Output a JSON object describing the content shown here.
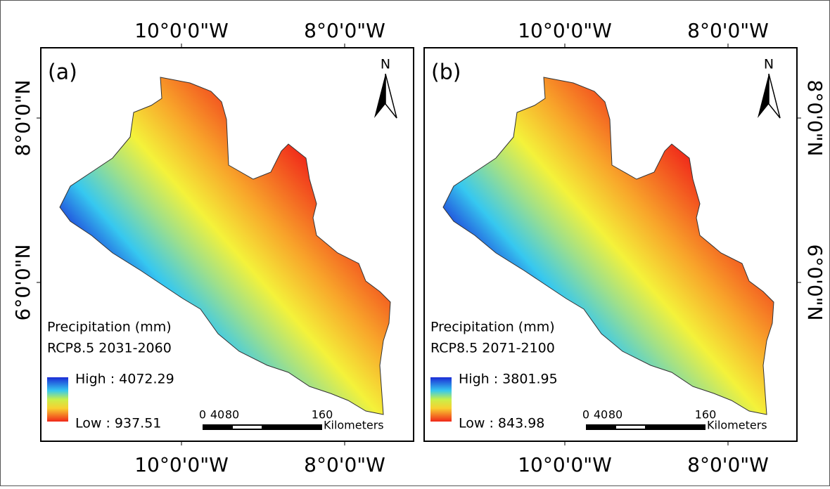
{
  "panels": [
    {
      "label": "(a)",
      "north": "N",
      "top_ticks": [
        "10°0'0\"W",
        "8°0'0\"W"
      ],
      "bottom_ticks": [
        "10°0'0\"W",
        "8°0'0\"W"
      ],
      "side_ticks": [
        "8°0'0\"N",
        "6°0'0\"N"
      ],
      "legend": {
        "title": "Precipitation (mm)",
        "scenario": "RCP8.5 2031-2060",
        "high": "High : 4072.29",
        "low": "Low : 937.51"
      },
      "scale": {
        "ticks": [
          "0",
          "40",
          "80",
          "160"
        ],
        "unit": "Kilometers"
      }
    },
    {
      "label": "(b)",
      "north": "N",
      "top_ticks": [
        "10°0'0\"W",
        "8°0'0\"W"
      ],
      "bottom_ticks": [
        "10°0'0\"W",
        "8°0'0\"W"
      ],
      "side_ticks": [
        "8°0'0\"N",
        "6°0'0\"N"
      ],
      "legend": {
        "title": "Precipitation (mm)",
        "scenario": "RCP8.5 2071-2100",
        "high": "High : 3801.95",
        "low": "Low : 843.98"
      },
      "scale": {
        "ticks": [
          "0",
          "40",
          "80",
          "160"
        ],
        "unit": "Kilometers"
      }
    }
  ]
}
